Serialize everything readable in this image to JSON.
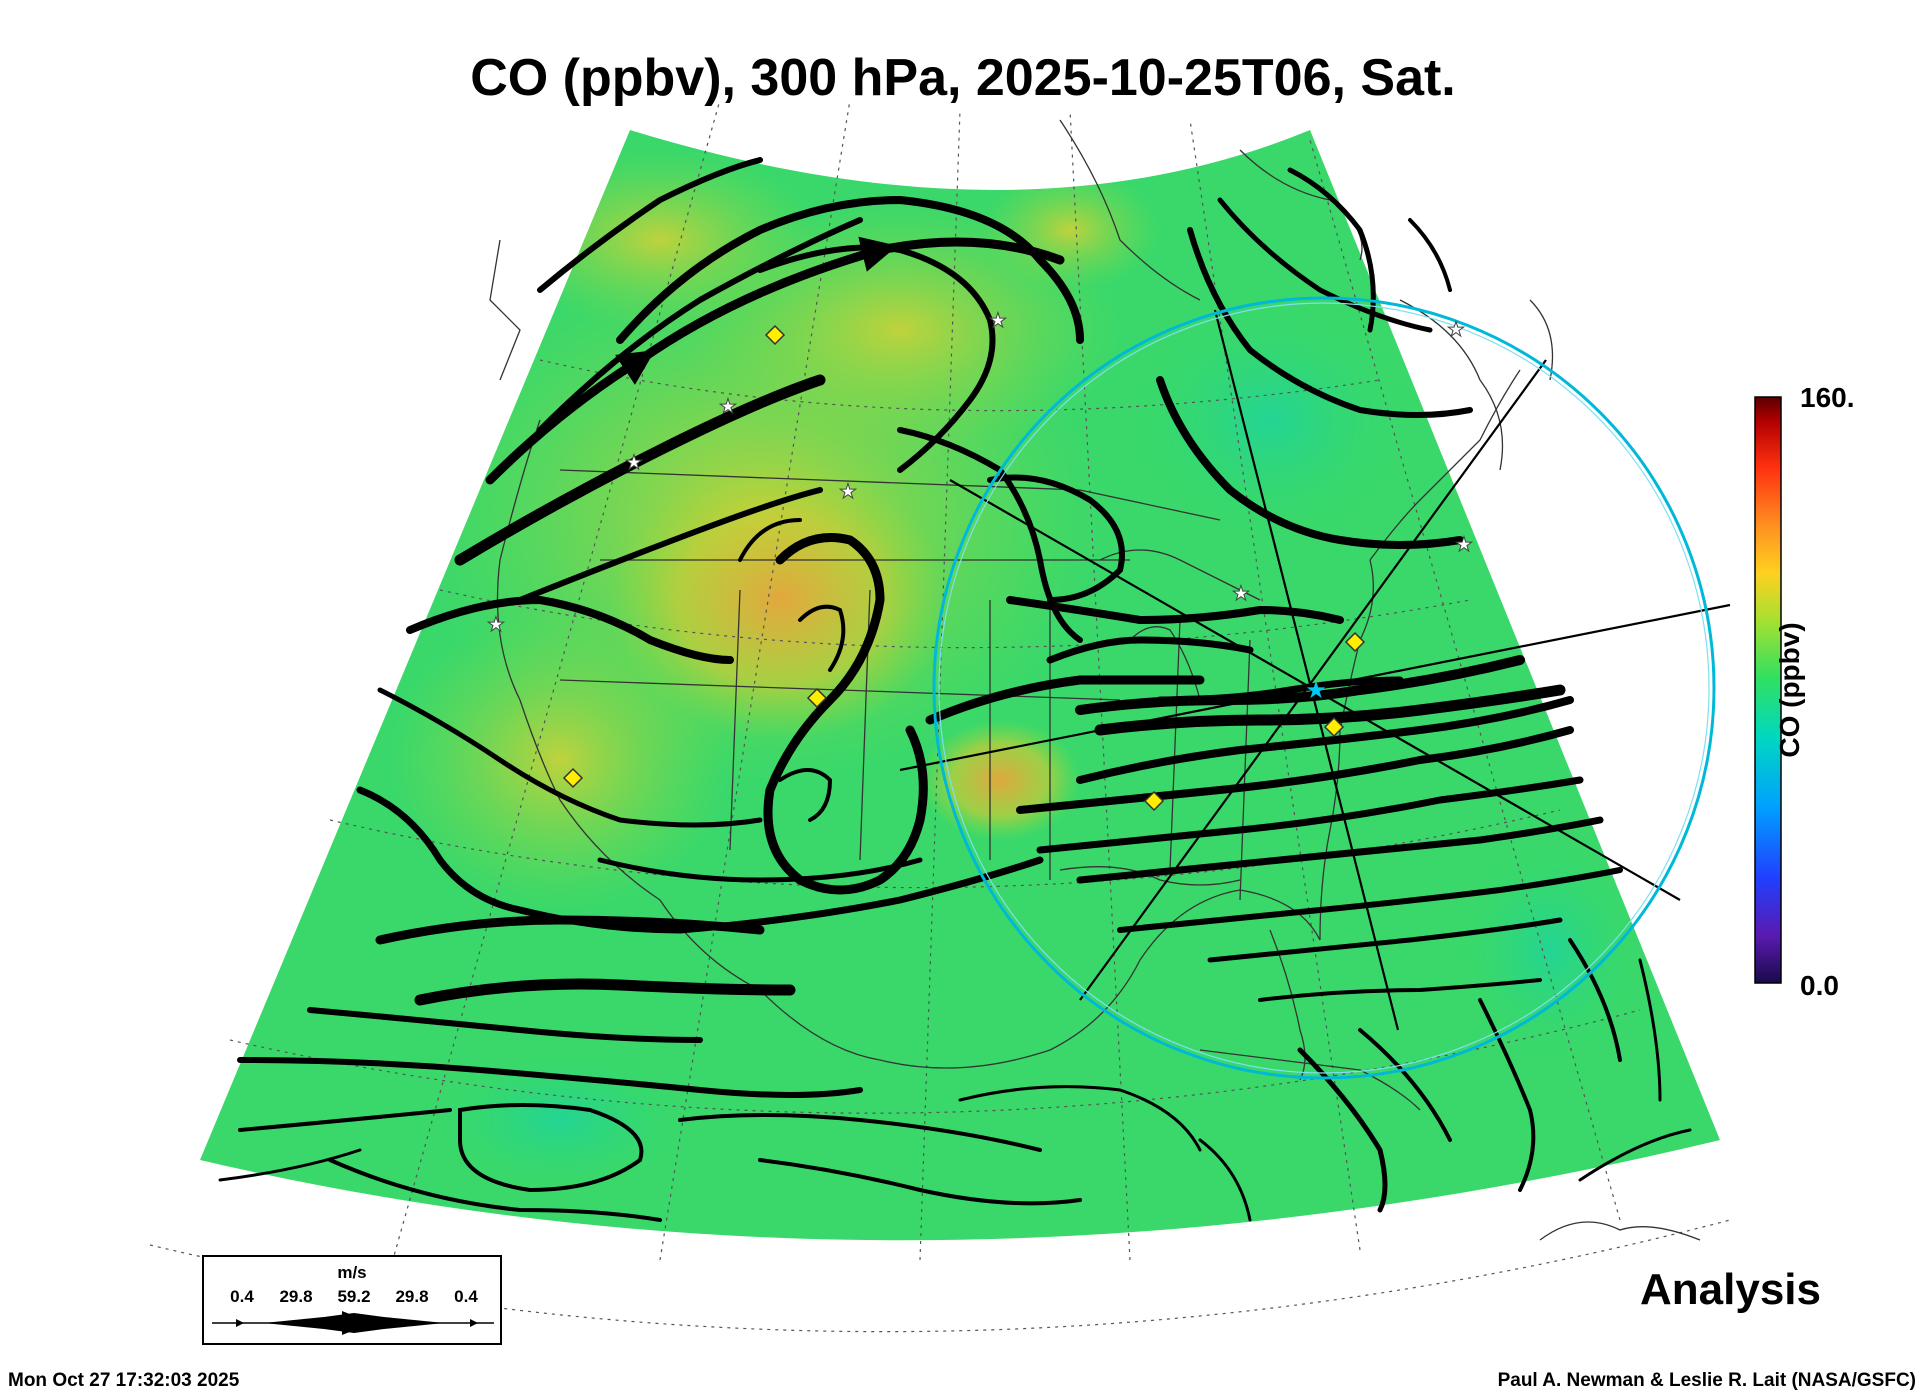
{
  "title": "CO (ppbv), 300 hPa, 2025-10-25T06, Sat.",
  "colorbar": {
    "max_label": "160.",
    "min_label": "0.0",
    "title": "CO (ppbv)",
    "range": [
      0,
      160
    ]
  },
  "wind_legend": {
    "unit": "m/s",
    "values": [
      "0.4",
      "29.8",
      "59.2",
      "29.8",
      "0.4"
    ]
  },
  "product_label": "Analysis",
  "footer": {
    "timestamp": "Mon Oct 27 17:32:03 2025",
    "credit": "Paul A. Newman & Leslie R. Lait (NASA/GSFC)"
  },
  "colors": {
    "field_background": "#33dd66",
    "field_elevated": "#b8d83a",
    "field_high": "#e8a040",
    "streamline": "#000000",
    "range_ring": "#00b8d8",
    "station_marker": "#ffee00"
  }
}
